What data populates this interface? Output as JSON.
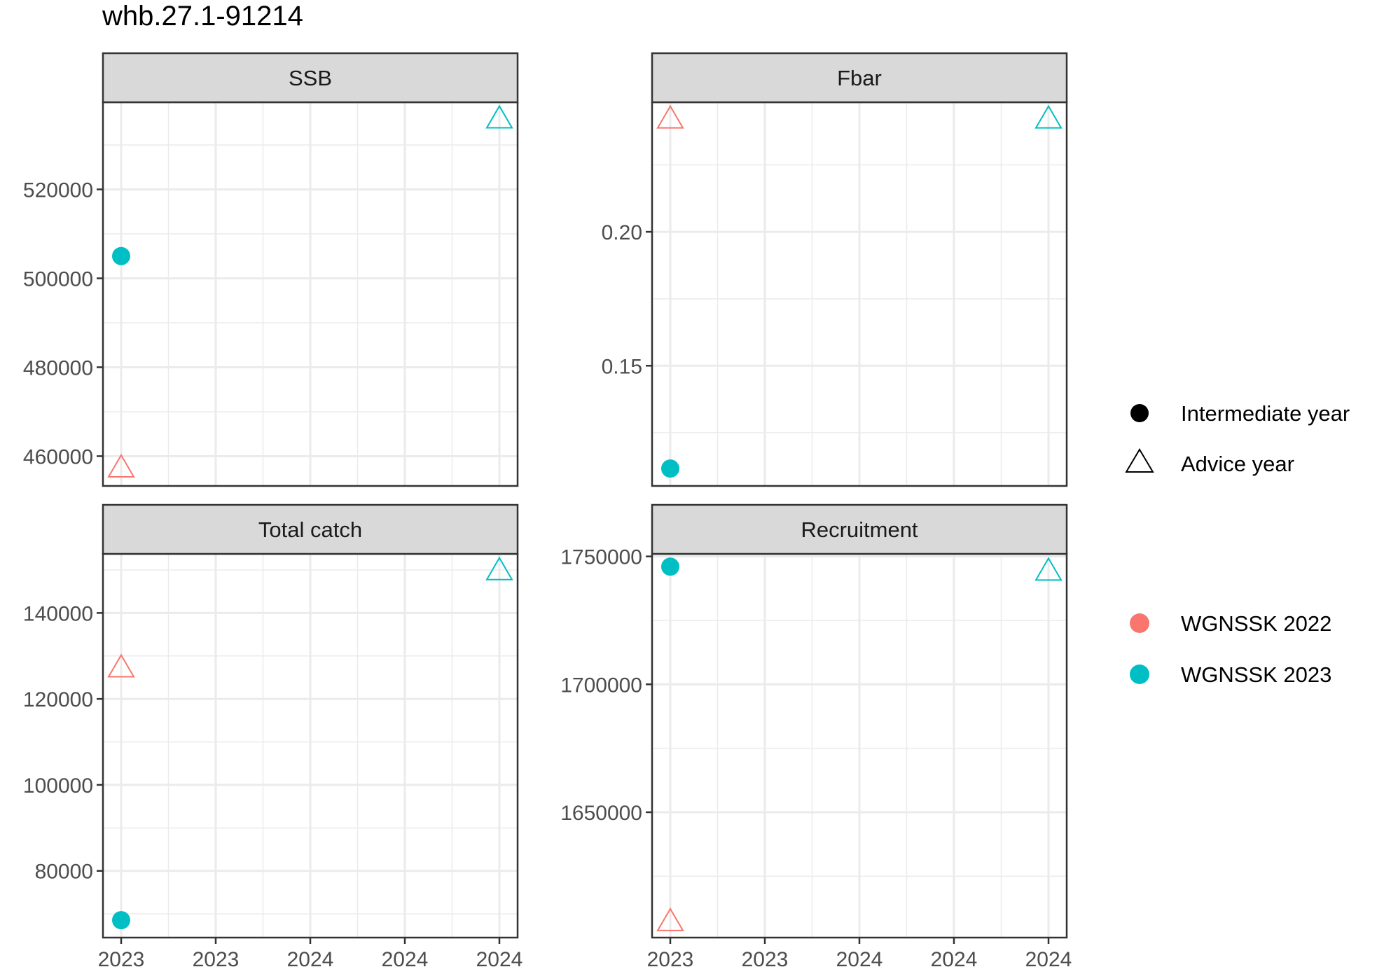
{
  "title": "whb.27.1-91214",
  "colors": {
    "WGNSSK 2022": "#F8766D",
    "WGNSSK 2023": "#00BFC4",
    "strip_fill": "#D9D9D9",
    "grid": "#EBEBEB",
    "panel_border": "#333333"
  },
  "chart_data": [
    {
      "type": "scatter",
      "panel": "SSB",
      "x_ticks": [
        "2023",
        "2023",
        "2024",
        "2024",
        "2024"
      ],
      "xlim": [
        2023,
        2024
      ],
      "y_ticks": [
        460000,
        480000,
        500000,
        520000
      ],
      "y_tick_labels": [
        "460000",
        "480000",
        "500000",
        "520000"
      ],
      "ylim": [
        453300,
        539600
      ],
      "series": [
        {
          "name": "WGNSSK 2022",
          "points": [
            {
              "x": 2023,
              "y": 457200,
              "shape": "Advice year"
            }
          ]
        },
        {
          "name": "WGNSSK 2023",
          "points": [
            {
              "x": 2023,
              "y": 505000,
              "shape": "Intermediate year"
            },
            {
              "x": 2024,
              "y": 535700,
              "shape": "Advice year"
            }
          ]
        }
      ]
    },
    {
      "type": "scatter",
      "panel": "Fbar",
      "x_ticks": [
        "2023",
        "2023",
        "2024",
        "2024",
        "2024"
      ],
      "xlim": [
        2023,
        2024
      ],
      "y_ticks": [
        0.15,
        0.2
      ],
      "y_tick_labels": [
        "0.15",
        "0.20"
      ],
      "ylim": [
        0.1051,
        0.2484
      ],
      "series": [
        {
          "name": "WGNSSK 2022",
          "points": [
            {
              "x": 2023,
              "y": 0.2419,
              "shape": "Advice year"
            }
          ]
        },
        {
          "name": "WGNSSK 2023",
          "points": [
            {
              "x": 2023,
              "y": 0.1116,
              "shape": "Intermediate year"
            },
            {
              "x": 2024,
              "y": 0.2419,
              "shape": "Advice year"
            }
          ]
        }
      ]
    },
    {
      "type": "scatter",
      "panel": "Total catch",
      "x_ticks": [
        "2023",
        "2023",
        "2024",
        "2024",
        "2024"
      ],
      "xlim": [
        2023,
        2024
      ],
      "y_ticks": [
        80000,
        100000,
        120000,
        140000
      ],
      "y_tick_labels": [
        "80000",
        "100000",
        "120000",
        "140000"
      ],
      "ylim": [
        64480,
        153740
      ],
      "series": [
        {
          "name": "WGNSSK 2022",
          "points": [
            {
              "x": 2023,
              "y": 127080,
              "shape": "Advice year"
            }
          ]
        },
        {
          "name": "WGNSSK 2023",
          "points": [
            {
              "x": 2023,
              "y": 68530,
              "shape": "Intermediate year"
            },
            {
              "x": 2024,
              "y": 149680,
              "shape": "Advice year"
            }
          ]
        }
      ]
    },
    {
      "type": "scatter",
      "panel": "Recruitment",
      "x_ticks": [
        "2023",
        "2023",
        "2024",
        "2024",
        "2024"
      ],
      "xlim": [
        2023,
        2024
      ],
      "y_ticks": [
        1650000,
        1700000,
        1750000
      ],
      "y_tick_labels": [
        "1650000",
        "1700000",
        "1750000"
      ],
      "ylim": [
        1601000,
        1751000
      ],
      "series": [
        {
          "name": "WGNSSK 2022",
          "points": [
            {
              "x": 2023,
              "y": 1607000,
              "shape": "Advice year"
            }
          ]
        },
        {
          "name": "WGNSSK 2023",
          "points": [
            {
              "x": 2023,
              "y": 1746000,
              "shape": "Intermediate year"
            },
            {
              "x": 2024,
              "y": 1744000,
              "shape": "Advice year"
            }
          ]
        }
      ]
    }
  ],
  "legend": {
    "shape_items": [
      {
        "label": "Intermediate year",
        "icon": "filled-circle"
      },
      {
        "label": "Advice year",
        "icon": "open-triangle"
      }
    ],
    "color_items": [
      {
        "label": "WGNSSK 2022",
        "color": "#F8766D"
      },
      {
        "label": "WGNSSK 2023",
        "color": "#00BFC4"
      }
    ]
  }
}
